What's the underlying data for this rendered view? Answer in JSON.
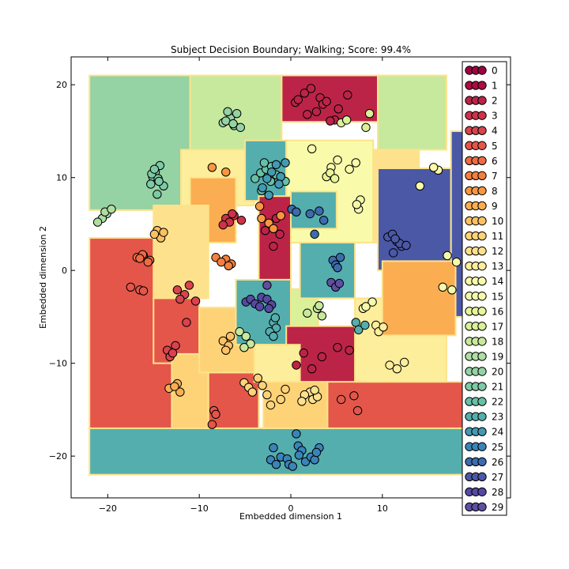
{
  "chart_data": {
    "type": "scatter",
    "title": "Subject Decision Boundary; Walking; Score: 99.4%",
    "xlabel": "Embedded dimension 1",
    "ylabel": "Embedded dimension 2",
    "xlim": [
      -24,
      24
    ],
    "ylim": [
      -24.5,
      23
    ],
    "xticks": [
      -20,
      -10,
      0,
      10
    ],
    "xtick_labels": [
      "−20",
      "−10",
      "0",
      "10"
    ],
    "yticks": [
      20,
      10,
      0,
      -10,
      -20
    ],
    "ytick_labels": [
      "20",
      "10",
      "0",
      "−10",
      "−20"
    ],
    "grid": false,
    "legend_position": "right",
    "legend": [
      "0",
      "1",
      "2",
      "3",
      "4",
      "5",
      "6",
      "7",
      "8",
      "9",
      "10",
      "11",
      "12",
      "13",
      "14",
      "15",
      "16",
      "17",
      "18",
      "19",
      "20",
      "21",
      "22",
      "23",
      "24",
      "25",
      "26",
      "27",
      "28",
      "29"
    ],
    "class_colors": [
      "#9e0142",
      "#a90d44",
      "#bc2447",
      "#cc334a",
      "#d8434d",
      "#e4564a",
      "#ee6b44",
      "#f4803e",
      "#f8973f",
      "#fbad52",
      "#fdc163",
      "#fed378",
      "#fee18c",
      "#fdee9c",
      "#fafbaa",
      "#f4faab",
      "#e9f599",
      "#daf099",
      "#c7e99d",
      "#afdea2",
      "#95d2a4",
      "#7ecaa5",
      "#67c0a6",
      "#54aead",
      "#449ab2",
      "#3a84b9",
      "#3c6cae",
      "#4b58a6",
      "#5549a1",
      "#5e4fa2"
    ],
    "regions": [
      {
        "class": 23,
        "x": [
          -22,
          20
        ],
        "y": [
          -22,
          -17
        ]
      },
      {
        "class": 5,
        "x": [
          -22,
          -13
        ],
        "y": [
          -17,
          3.5
        ]
      },
      {
        "class": 20,
        "x": [
          -22,
          -11
        ],
        "y": [
          6.5,
          21
        ]
      },
      {
        "class": 18,
        "x": [
          -11,
          -1
        ],
        "y": [
          13,
          21
        ]
      },
      {
        "class": 2,
        "x": [
          -1,
          9.5
        ],
        "y": [
          16,
          21
        ]
      },
      {
        "class": 18,
        "x": [
          9.5,
          17
        ],
        "y": [
          13,
          21
        ]
      },
      {
        "class": 13,
        "x": [
          -12,
          -4
        ],
        "y": [
          7,
          13
        ]
      },
      {
        "class": 9,
        "x": [
          -11,
          -6
        ],
        "y": [
          3,
          10
        ]
      },
      {
        "class": 23,
        "x": [
          -5,
          -0.5
        ],
        "y": [
          7.5,
          14
        ]
      },
      {
        "class": 14,
        "x": [
          -0.5,
          9
        ],
        "y": [
          3,
          14
        ]
      },
      {
        "class": 12,
        "x": [
          9,
          14
        ],
        "y": [
          3,
          13
        ]
      },
      {
        "class": 27,
        "x": [
          9.5,
          17.5
        ],
        "y": [
          0,
          11
        ]
      },
      {
        "class": 27,
        "x": [
          17.5,
          20
        ],
        "y": [
          -5,
          15
        ]
      },
      {
        "class": 2,
        "x": [
          -3.5,
          0
        ],
        "y": [
          -1,
          8
        ]
      },
      {
        "class": 23,
        "x": [
          0,
          5
        ],
        "y": [
          4.5,
          8.5
        ]
      },
      {
        "class": 12,
        "x": [
          -15,
          -9
        ],
        "y": [
          -3,
          7
        ]
      },
      {
        "class": 5,
        "x": [
          -15,
          -10
        ],
        "y": [
          -10,
          -3
        ]
      },
      {
        "class": 11,
        "x": [
          -13,
          -9
        ],
        "y": [
          -17,
          -9
        ]
      },
      {
        "class": 5,
        "x": [
          -9,
          -3.5
        ],
        "y": [
          -17,
          -11
        ]
      },
      {
        "class": 11,
        "x": [
          -10,
          -4
        ],
        "y": [
          -11,
          -4
        ]
      },
      {
        "class": 23,
        "x": [
          -6,
          0
        ],
        "y": [
          -8,
          -1
        ]
      },
      {
        "class": 17,
        "x": [
          0,
          3
        ],
        "y": [
          -6,
          -2
        ]
      },
      {
        "class": 23,
        "x": [
          1,
          7
        ],
        "y": [
          -3,
          3
        ]
      },
      {
        "class": 2,
        "x": [
          -0.5,
          7.5
        ],
        "y": [
          -12.5,
          -6
        ]
      },
      {
        "class": 5,
        "x": [
          4,
          20
        ],
        "y": [
          -17,
          -12
        ]
      },
      {
        "class": 11,
        "x": [
          -3,
          4
        ],
        "y": [
          -17,
          -12
        ]
      },
      {
        "class": 13,
        "x": [
          -4,
          1
        ],
        "y": [
          -12,
          -8
        ]
      },
      {
        "class": 13,
        "x": [
          7,
          17
        ],
        "y": [
          -12,
          -3
        ]
      },
      {
        "class": 9,
        "x": [
          10,
          18
        ],
        "y": [
          -7,
          1
        ]
      }
    ],
    "series": [
      {
        "label": "0",
        "x": [],
        "y": []
      },
      {
        "label": "1",
        "x": [],
        "y": []
      },
      {
        "label": "2",
        "x": [
          0.5,
          1.5,
          2.8,
          3.2,
          1.8,
          0.8,
          2.2,
          3.5,
          4.8,
          6.2,
          4.3,
          5.2,
          3.9,
          -1.6,
          -2.8,
          -1.2,
          -1.9,
          1.4,
          3.4,
          5.1,
          6.4,
          0.6,
          2.3
        ],
        "y": [
          18.1,
          19.1,
          17.1,
          18.6,
          16.8,
          18.4,
          19.6,
          17.9,
          16.2,
          18.9,
          16.1,
          17.4,
          18.2,
          5.6,
          4.3,
          3.9,
          2.6,
          -8.9,
          -9.3,
          -8.3,
          -8.6,
          -10.2,
          -10.6
        ]
      },
      {
        "label": "3",
        "x": [
          -7.1,
          -6.2,
          -6.7,
          -5.4,
          -6.4,
          -7.4
        ],
        "y": [
          5.6,
          5.9,
          5.2,
          5.4,
          6.1,
          4.9
        ]
      },
      {
        "label": "4",
        "x": [
          -12.4,
          -11.6,
          -12.1,
          -11.1,
          -10.4,
          -11.4,
          -13.5,
          -13.2,
          -12.6,
          -12.9
        ],
        "y": [
          -2.1,
          -2.6,
          -3.1,
          -1.6,
          -3.3,
          -5.6,
          -8.6,
          -9.3,
          -8.1,
          -8.9
        ]
      },
      {
        "label": "5",
        "x": [
          -17.5,
          -16.5,
          -16.1,
          -8.4,
          -8.6,
          -8.2,
          5.5,
          6.9,
          7.3
        ],
        "y": [
          -1.8,
          -2.1,
          -2.2,
          -15.1,
          -16.6,
          -15.5,
          -13.9,
          -13.5,
          -15.1
        ]
      },
      {
        "label": "6",
        "x": [
          -16.1,
          -15.4,
          -16.8,
          -16.2,
          -15.6,
          -16.5
        ],
        "y": [
          1.6,
          1.1,
          1.4,
          1.7,
          0.9,
          1.3
        ]
      },
      {
        "label": "7",
        "x": [
          -8.2,
          -7.1,
          -6.5,
          -6.8,
          -7.6
        ],
        "y": [
          1.4,
          1.2,
          0.7,
          0.5,
          0.9
        ]
      },
      {
        "label": "8",
        "x": [
          -8.6,
          -7.1,
          -3.4,
          -3.2,
          -2.4,
          -1.1,
          -1.9
        ],
        "y": [
          11.1,
          10.6,
          6.9,
          5.6,
          5.1,
          5.9,
          4.5
        ]
      },
      {
        "label": "9",
        "x": [
          -12.4,
          -12.1,
          -13.3,
          -12.7
        ],
        "y": [
          -12.2,
          -13.1,
          -12.7,
          -12.5
        ]
      },
      {
        "label": "10",
        "x": [
          -14.6,
          -14.2,
          -14.9,
          -13.9,
          -7.4,
          -6.8,
          -7.1,
          -6.6
        ],
        "y": [
          4.3,
          3.5,
          3.9,
          4.1,
          -7.6,
          -8.1,
          -8.6,
          -7.1
        ]
      },
      {
        "label": "11",
        "x": [
          -5.1,
          -4.6,
          -4.2,
          -3.6,
          -3.1,
          -2.6,
          -1.1,
          -2.2,
          -0.6
        ],
        "y": [
          -12.1,
          -12.6,
          -13.1,
          -11.6,
          -12.4,
          -13.4,
          -13.9,
          -14.5,
          -12.8
        ]
      },
      {
        "label": "12",
        "x": [
          2.1,
          2.4,
          1.5,
          1.2,
          2.9,
          2.6
        ],
        "y": [
          -13.1,
          -13.9,
          -13.4,
          -14.1,
          -13.6,
          -12.9
        ]
      },
      {
        "label": "13",
        "x": [
          9.3,
          9.6,
          10.1,
          12.4,
          11.6,
          10.8
        ],
        "y": [
          -5.9,
          -6.6,
          -6.1,
          -9.9,
          -10.6,
          -10.2
        ]
      },
      {
        "label": "14",
        "x": [
          2.3,
          4.4,
          5.1,
          6.4,
          7.1,
          14.1,
          16.1,
          15.6
        ],
        "y": [
          13.1,
          11.1,
          11.9,
          10.9,
          11.6,
          9.1,
          10.8,
          11.1
        ]
      },
      {
        "label": "15",
        "x": [
          7.4,
          7.6,
          7.2,
          17.1,
          18.1,
          17.6,
          16.6,
          8.9,
          7.9,
          8.2
        ],
        "y": [
          6.6,
          7.6,
          7.1,
          1.6,
          0.9,
          -2.1,
          -1.8,
          -3.4,
          -4.1,
          -3.9
        ]
      },
      {
        "label": "16",
        "x": [
          3.9,
          4.3,
          4.8
        ],
        "y": [
          10.1,
          10.5,
          9.9
        ]
      },
      {
        "label": "17",
        "x": [
          5.5,
          6.1,
          8.6,
          8.2
        ],
        "y": [
          15.9,
          16.2,
          16.9,
          15.4
        ]
      },
      {
        "label": "18",
        "x": [
          -5.6,
          -4.9,
          -4.4,
          -5.1,
          1.8,
          2.9,
          3.4,
          3.1
        ],
        "y": [
          -6.6,
          -7.1,
          -7.9,
          -8.3,
          -4.6,
          -4.1,
          -4.9,
          -3.8
        ]
      },
      {
        "label": "19",
        "x": [
          -20.1,
          -20.6,
          -21.1,
          -20.3,
          -19.6
        ],
        "y": [
          6.1,
          5.6,
          5.2,
          6.3,
          6.6
        ]
      },
      {
        "label": "20",
        "x": [
          -7.4,
          -6.6,
          -6.2,
          -5.9,
          -5.5,
          -6.9,
          -7.1,
          -6.3
        ],
        "y": [
          15.9,
          16.4,
          15.6,
          16.9,
          15.4,
          17.1,
          16.1,
          15.8
        ]
      },
      {
        "label": "21",
        "x": [
          -14.8,
          -15.1,
          -14.3,
          -14.5,
          -15.2,
          -13.9,
          -14.6,
          -15.3,
          -14.9,
          -14.4
        ],
        "y": [
          10.6,
          10.1,
          11.3,
          9.9,
          10.4,
          9.1,
          8.2,
          9.3,
          10.9,
          9.6
        ]
      },
      {
        "label": "22",
        "x": [
          -3.9,
          -3.3,
          -2.7,
          -2.2,
          -3.2,
          -1.6,
          -2.1,
          -2.9,
          -1.1,
          -0.6
        ],
        "y": [
          9.9,
          10.5,
          10.9,
          9.6,
          8.6,
          10.3,
          11.2,
          11.6,
          10.1,
          9.6
        ]
      },
      {
        "label": "23",
        "x": [
          -1.9,
          -1.6,
          -2.3,
          -1.7,
          -1.9,
          7.1,
          7.4,
          8.1
        ],
        "y": [
          -5.6,
          -6.2,
          -6.6,
          -5.1,
          -7.1,
          -5.6,
          -6.4,
          -5.9
        ]
      },
      {
        "label": "24",
        "x": [
          -2.1,
          -1.6,
          -1.1,
          -0.6,
          -2.6,
          -1.3,
          -3.1,
          -2.4
        ],
        "y": [
          10.6,
          11.4,
          10.1,
          11.6,
          9.9,
          9.3,
          8.9,
          8.1
        ]
      },
      {
        "label": "25",
        "x": [
          -1.9,
          -2.2,
          -1.6,
          -1.1,
          0.6,
          -0.4,
          -0.2,
          0.2,
          0.8,
          1.2,
          1.6,
          0.9,
          2.2,
          2.6,
          3.1,
          2.8
        ],
        "y": [
          -19.1,
          -20.4,
          -20.9,
          -20.1,
          -17.6,
          -20.3,
          -20.9,
          -21.1,
          -18.9,
          -19.4,
          -20.6,
          -19.9,
          -20.1,
          -20.4,
          -19.1,
          -19.6
        ]
      },
      {
        "label": "26",
        "x": [
          0.1,
          0.6,
          2.1,
          3.1,
          2.6,
          3.6,
          4.6,
          4.9,
          5.4,
          5.1
        ],
        "y": [
          6.6,
          6.3,
          6.1,
          6.4,
          3.9,
          5.4,
          1.1,
          0.6,
          1.4,
          0.3
        ]
      },
      {
        "label": "27",
        "x": [
          10.6,
          11.1,
          11.6,
          12.1,
          11.9,
          11.4,
          12.6,
          11.2
        ],
        "y": [
          3.6,
          3.9,
          3.1,
          2.6,
          2.9,
          3.4,
          2.7,
          1.9
        ]
      },
      {
        "label": "28",
        "x": [
          -4.9,
          -4.4,
          -3.9,
          -3.4,
          -3.2,
          -2.6,
          -2.1,
          -2.4
        ],
        "y": [
          -3.4,
          -3.1,
          -3.6,
          -3.9,
          -2.9,
          -3.1,
          -3.7,
          -4.1
        ]
      },
      {
        "label": "29",
        "x": [
          -2.6,
          4.4,
          4.9,
          5.3
        ],
        "y": [
          -1.6,
          -1.3,
          -1.8,
          -1.4
        ]
      }
    ]
  }
}
